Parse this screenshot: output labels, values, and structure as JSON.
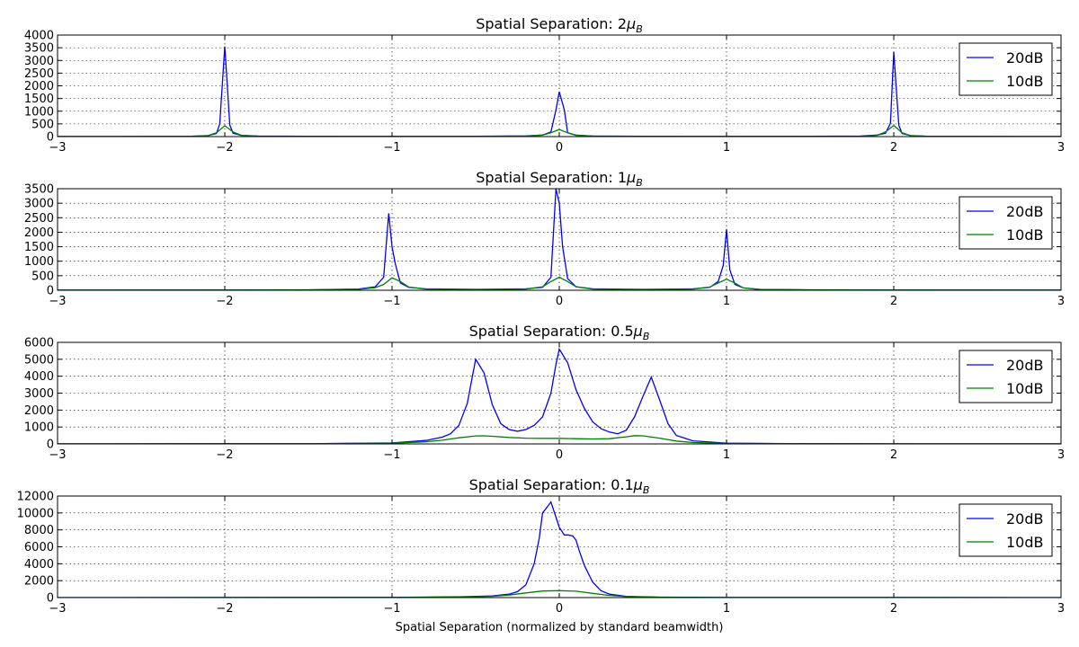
{
  "chart_data": [
    {
      "type": "line",
      "title": "Spatial Separation: 2",
      "title_sub": "μB",
      "xlim": [
        -3,
        3
      ],
      "ylim": [
        0,
        4000
      ],
      "xticks": [
        -3,
        -2,
        -1,
        0,
        1,
        2,
        3
      ],
      "xtick_labels": [
        "−3",
        "−2",
        "−1",
        "0",
        "1",
        "2",
        "3"
      ],
      "yticks": [
        0,
        500,
        1000,
        1500,
        2000,
        2500,
        3000,
        3500,
        4000
      ],
      "grid": true,
      "legend_position": "top-right",
      "series": [
        {
          "name": "20dB",
          "color": "#0000ff",
          "x": [
            -3,
            -2.4,
            -2.2,
            -2.1,
            -2.05,
            -2.03,
            -2.0,
            -1.97,
            -1.95,
            -1.9,
            -1.8,
            -1.5,
            -1.0,
            -0.5,
            -0.2,
            -0.1,
            -0.05,
            -0.02,
            0.0,
            0.03,
            0.05,
            0.1,
            0.2,
            0.5,
            1.0,
            1.5,
            1.8,
            1.9,
            1.95,
            1.98,
            2.0,
            2.03,
            2.05,
            2.1,
            2.2,
            2.5,
            3
          ],
          "y": [
            5,
            8,
            15,
            40,
            120,
            500,
            3550,
            450,
            130,
            45,
            20,
            10,
            8,
            10,
            25,
            60,
            180,
            1050,
            1770,
            1050,
            150,
            50,
            20,
            10,
            8,
            10,
            20,
            60,
            130,
            520,
            3330,
            450,
            120,
            40,
            15,
            8,
            5
          ]
        },
        {
          "name": "10dB",
          "color": "#008000",
          "x": [
            -3,
            -2.4,
            -2.2,
            -2.1,
            -2.05,
            -2.0,
            -1.95,
            -1.9,
            -1.8,
            -1.5,
            -1.0,
            -0.5,
            -0.2,
            -0.1,
            -0.05,
            0.0,
            0.05,
            0.1,
            0.2,
            0.5,
            1.0,
            1.5,
            1.8,
            1.9,
            1.95,
            2.0,
            2.05,
            2.1,
            2.2,
            2.5,
            3
          ],
          "y": [
            3,
            5,
            12,
            40,
            150,
            430,
            180,
            50,
            15,
            8,
            6,
            8,
            20,
            60,
            150,
            280,
            150,
            60,
            20,
            8,
            6,
            8,
            15,
            50,
            180,
            440,
            150,
            40,
            12,
            5,
            3
          ]
        }
      ]
    },
    {
      "type": "line",
      "title": "Spatial Separation: 1",
      "title_sub": "μB",
      "xlim": [
        -3,
        3
      ],
      "ylim": [
        0,
        3500
      ],
      "xticks": [
        -3,
        -2,
        -1,
        0,
        1,
        2,
        3
      ],
      "xtick_labels": [
        "−3",
        "−2",
        "−1",
        "0",
        "1",
        "2",
        "3"
      ],
      "yticks": [
        0,
        500,
        1000,
        1500,
        2000,
        2500,
        3000,
        3500
      ],
      "grid": true,
      "legend_position": "top-right",
      "series": [
        {
          "name": "20dB",
          "color": "#0000ff",
          "x": [
            -3,
            -2,
            -1.5,
            -1.2,
            -1.1,
            -1.05,
            -1.02,
            -1.0,
            -0.98,
            -0.95,
            -0.9,
            -0.8,
            -0.5,
            -0.2,
            -0.1,
            -0.05,
            -0.02,
            0.0,
            0.02,
            0.05,
            0.1,
            0.2,
            0.5,
            0.8,
            0.9,
            0.95,
            0.98,
            1.0,
            1.02,
            1.05,
            1.1,
            1.2,
            1.5,
            2,
            3
          ],
          "y": [
            5,
            8,
            15,
            40,
            120,
            450,
            2650,
            1500,
            900,
            250,
            100,
            50,
            30,
            50,
            100,
            450,
            3500,
            3000,
            1500,
            400,
            120,
            50,
            30,
            50,
            100,
            300,
            850,
            2100,
            700,
            200,
            80,
            30,
            15,
            8,
            5
          ]
        },
        {
          "name": "10dB",
          "color": "#008000",
          "x": [
            -3,
            -2,
            -1.5,
            -1.2,
            -1.1,
            -1.05,
            -1.0,
            -0.95,
            -0.9,
            -0.8,
            -0.5,
            -0.2,
            -0.1,
            -0.05,
            0.0,
            0.05,
            0.1,
            0.2,
            0.5,
            0.8,
            0.9,
            0.95,
            1.0,
            1.05,
            1.1,
            1.2,
            1.5,
            2,
            3
          ],
          "y": [
            3,
            5,
            10,
            30,
            90,
            200,
            430,
            300,
            110,
            40,
            20,
            40,
            120,
            300,
            450,
            300,
            120,
            40,
            20,
            40,
            110,
            250,
            380,
            250,
            80,
            25,
            10,
            5,
            3
          ]
        }
      ]
    },
    {
      "type": "line",
      "title": "Spatial Separation: 0.5",
      "title_sub": "μB",
      "xlim": [
        -3,
        3
      ],
      "ylim": [
        0,
        6000
      ],
      "xticks": [
        -3,
        -2,
        -1,
        0,
        1,
        2,
        3
      ],
      "xtick_labels": [
        "−3",
        "−2",
        "−1",
        "0",
        "1",
        "2",
        "3"
      ],
      "yticks": [
        0,
        1000,
        2000,
        3000,
        4000,
        5000,
        6000
      ],
      "grid": true,
      "legend_position": "top-right",
      "series": [
        {
          "name": "20dB",
          "color": "#0000ff",
          "x": [
            -3,
            -1.5,
            -1.0,
            -0.8,
            -0.7,
            -0.65,
            -0.6,
            -0.55,
            -0.5,
            -0.45,
            -0.4,
            -0.35,
            -0.3,
            -0.25,
            -0.2,
            -0.15,
            -0.1,
            -0.05,
            -0.02,
            0.0,
            0.05,
            0.1,
            0.15,
            0.2,
            0.25,
            0.3,
            0.35,
            0.4,
            0.45,
            0.5,
            0.55,
            0.6,
            0.65,
            0.7,
            0.8,
            1.0,
            1.5,
            3
          ],
          "y": [
            5,
            10,
            60,
            200,
            400,
            600,
            1100,
            2400,
            5000,
            4200,
            2300,
            1200,
            850,
            750,
            850,
            1100,
            1600,
            3000,
            4700,
            5600,
            4800,
            3200,
            2100,
            1300,
            900,
            700,
            600,
            800,
            1600,
            2800,
            3950,
            2600,
            1200,
            500,
            180,
            50,
            10,
            5
          ]
        },
        {
          "name": "10dB",
          "color": "#008000",
          "x": [
            -3,
            -1.5,
            -1.0,
            -0.8,
            -0.7,
            -0.6,
            -0.5,
            -0.45,
            -0.4,
            -0.3,
            -0.2,
            -0.1,
            0.0,
            0.1,
            0.2,
            0.3,
            0.4,
            0.45,
            0.5,
            0.6,
            0.7,
            0.8,
            1.0,
            1.5,
            3
          ],
          "y": [
            3,
            8,
            40,
            120,
            220,
            360,
            470,
            480,
            450,
            380,
            340,
            330,
            330,
            310,
            290,
            310,
            420,
            490,
            480,
            340,
            170,
            80,
            30,
            8,
            3
          ]
        }
      ]
    },
    {
      "type": "line",
      "title": "Spatial Separation: 0.1",
      "title_sub": "μB",
      "xlim": [
        -3,
        3
      ],
      "ylim": [
        0,
        12000
      ],
      "xticks": [
        -3,
        -2,
        -1,
        0,
        1,
        2,
        3
      ],
      "xtick_labels": [
        "−3",
        "−2",
        "−1",
        "0",
        "1",
        "2",
        "3"
      ],
      "yticks": [
        0,
        2000,
        4000,
        6000,
        8000,
        10000,
        12000
      ],
      "grid": true,
      "legend_position": "top-right",
      "series": [
        {
          "name": "20dB",
          "color": "#0000ff",
          "x": [
            -3,
            -1.0,
            -0.6,
            -0.4,
            -0.3,
            -0.25,
            -0.2,
            -0.15,
            -0.12,
            -0.1,
            -0.08,
            -0.05,
            -0.02,
            0.0,
            0.03,
            0.05,
            0.08,
            0.1,
            0.12,
            0.15,
            0.2,
            0.25,
            0.3,
            0.4,
            0.6,
            1.0,
            3
          ],
          "y": [
            5,
            20,
            80,
            200,
            400,
            700,
            1500,
            4000,
            7000,
            10000,
            10500,
            11300,
            9500,
            8300,
            7400,
            7400,
            7300,
            6800,
            5500,
            3800,
            1800,
            800,
            400,
            150,
            50,
            15,
            5
          ]
        },
        {
          "name": "10dB",
          "color": "#008000",
          "x": [
            -3,
            -1.0,
            -0.6,
            -0.4,
            -0.3,
            -0.2,
            -0.1,
            0.0,
            0.1,
            0.2,
            0.3,
            0.4,
            0.6,
            1.0,
            3
          ],
          "y": [
            3,
            15,
            60,
            150,
            300,
            550,
            780,
            820,
            750,
            500,
            250,
            120,
            40,
            10,
            3
          ]
        }
      ]
    }
  ],
  "xlabel": "Spatial Separation (normalized by standard beamwidth)"
}
